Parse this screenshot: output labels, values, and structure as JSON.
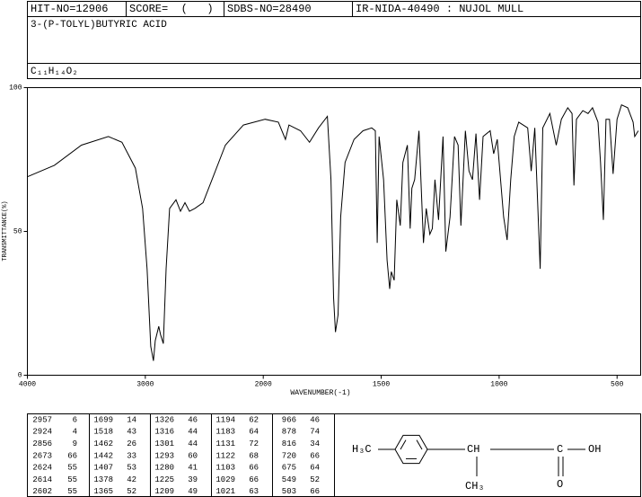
{
  "header": {
    "hit_no": "HIT-NO=12906",
    "score": "SCORE=  (   )",
    "sdbs_no": "SDBS-NO=28490",
    "ir_id": "IR-NIDA-40490 : NUJOL MULL",
    "name": "3-(P-TOLYL)BUTYRIC ACID",
    "formula": "C₁₁H₁₄O₂"
  },
  "chart_data": {
    "type": "line",
    "color": "#000000",
    "xlabel": "WAVENUMBER(-1)",
    "ylabel": "TRANSMITTANCE(%)",
    "x": [
      4000,
      3771,
      3542,
      3313,
      3198,
      3084,
      3023,
      2985,
      2954,
      2931,
      2916,
      2886,
      2870,
      2847,
      2824,
      2794,
      2740,
      2702,
      2664,
      2626,
      2580,
      2511,
      2435,
      2321,
      2168,
      1992,
      1936,
      1906,
      1891,
      1842,
      1804,
      1766,
      1728,
      1713,
      1702,
      1694,
      1683,
      1672,
      1653,
      1615,
      1577,
      1540,
      1525,
      1517,
      1509,
      1490,
      1475,
      1464,
      1457,
      1445,
      1434,
      1419,
      1408,
      1389,
      1377,
      1370,
      1358,
      1340,
      1321,
      1309,
      1294,
      1283,
      1272,
      1257,
      1238,
      1226,
      1208,
      1189,
      1174,
      1162,
      1143,
      1128,
      1113,
      1098,
      1083,
      1068,
      1038,
      1023,
      1008,
      981,
      966,
      951,
      936,
      917,
      879,
      864,
      849,
      826,
      815,
      785,
      758,
      736,
      709,
      691,
      683,
      672,
      645,
      623,
      604,
      581,
      570,
      558,
      547,
      532,
      517,
      500,
      481,
      455,
      432,
      425,
      410
    ],
    "values": [
      69,
      73,
      80,
      83,
      81,
      72,
      58,
      37,
      10,
      5,
      12,
      17,
      14,
      11,
      37,
      58,
      61,
      57,
      60,
      57,
      58,
      60,
      68,
      80,
      87,
      89,
      88,
      82,
      87,
      85,
      81,
      86,
      90,
      68,
      27,
      15,
      21,
      55,
      74,
      82,
      85,
      86,
      85,
      46,
      83,
      68,
      40,
      30,
      36,
      33,
      61,
      52,
      74,
      80,
      51,
      65,
      68,
      85,
      46,
      58,
      49,
      51,
      68,
      54,
      83,
      43,
      55,
      83,
      80,
      52,
      85,
      71,
      68,
      84,
      61,
      83,
      85,
      77,
      82,
      55,
      47,
      68,
      83,
      88,
      86,
      71,
      86,
      37,
      86,
      91,
      80,
      89,
      93,
      91,
      66,
      89,
      92,
      91,
      93,
      88,
      74,
      54,
      89,
      89,
      70,
      89,
      94,
      93,
      88,
      83,
      85
    ],
    "xlim": [
      4000,
      400
    ],
    "ylim": [
      0,
      100
    ],
    "xticks": [
      4000,
      3000,
      2000,
      1500,
      1000,
      500
    ],
    "yticks": [
      0,
      50,
      100
    ]
  },
  "peak_table": [
    [
      [
        2957,
        6
      ],
      [
        2924,
        4
      ],
      [
        2856,
        9
      ],
      [
        2673,
        66
      ],
      [
        2624,
        55
      ],
      [
        2614,
        55
      ],
      [
        2602,
        55
      ]
    ],
    [
      [
        1699,
        14
      ],
      [
        1518,
        43
      ],
      [
        1462,
        26
      ],
      [
        1442,
        33
      ],
      [
        1407,
        53
      ],
      [
        1378,
        42
      ],
      [
        1365,
        52
      ]
    ],
    [
      [
        1326,
        46
      ],
      [
        1316,
        44
      ],
      [
        1301,
        44
      ],
      [
        1293,
        60
      ],
      [
        1280,
        41
      ],
      [
        1225,
        39
      ],
      [
        1209,
        49
      ]
    ],
    [
      [
        1194,
        62
      ],
      [
        1183,
        64
      ],
      [
        1131,
        72
      ],
      [
        1122,
        68
      ],
      [
        1103,
        66
      ],
      [
        1029,
        66
      ],
      [
        1021,
        63
      ]
    ],
    [
      [
        966,
        46
      ],
      [
        878,
        74
      ],
      [
        816,
        34
      ],
      [
        720,
        66
      ],
      [
        675,
        64
      ],
      [
        549,
        52
      ],
      [
        503,
        66
      ]
    ]
  ],
  "structure": {
    "methyl_left": "H₃C",
    "ch": "CH",
    "carbon": "C",
    "hydroxyl": "OH",
    "methyl_branch": "CH₃",
    "oxygen": "O"
  }
}
